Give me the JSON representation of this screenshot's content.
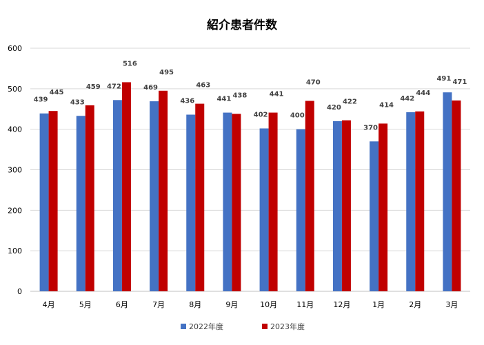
{
  "chart_data": {
    "type": "bar",
    "title": "紹介患者件数",
    "categories": [
      "4月",
      "5月",
      "6月",
      "7月",
      "8月",
      "9月",
      "10月",
      "11月",
      "12月",
      "1月",
      "2月",
      "3月"
    ],
    "series": [
      {
        "name": "2022年度",
        "color": "#4472C4",
        "values": [
          439,
          433,
          472,
          469,
          436,
          441,
          402,
          400,
          420,
          370,
          442,
          491
        ]
      },
      {
        "name": "2023年度",
        "color": "#C00000",
        "values": [
          445,
          459,
          516,
          495,
          463,
          438,
          441,
          470,
          422,
          414,
          444,
          471
        ]
      }
    ],
    "ylim": [
      0,
      600
    ],
    "yticks": [
      0,
      100,
      200,
      300,
      400,
      500,
      600
    ],
    "grid": true,
    "legend_position": "bottom"
  }
}
